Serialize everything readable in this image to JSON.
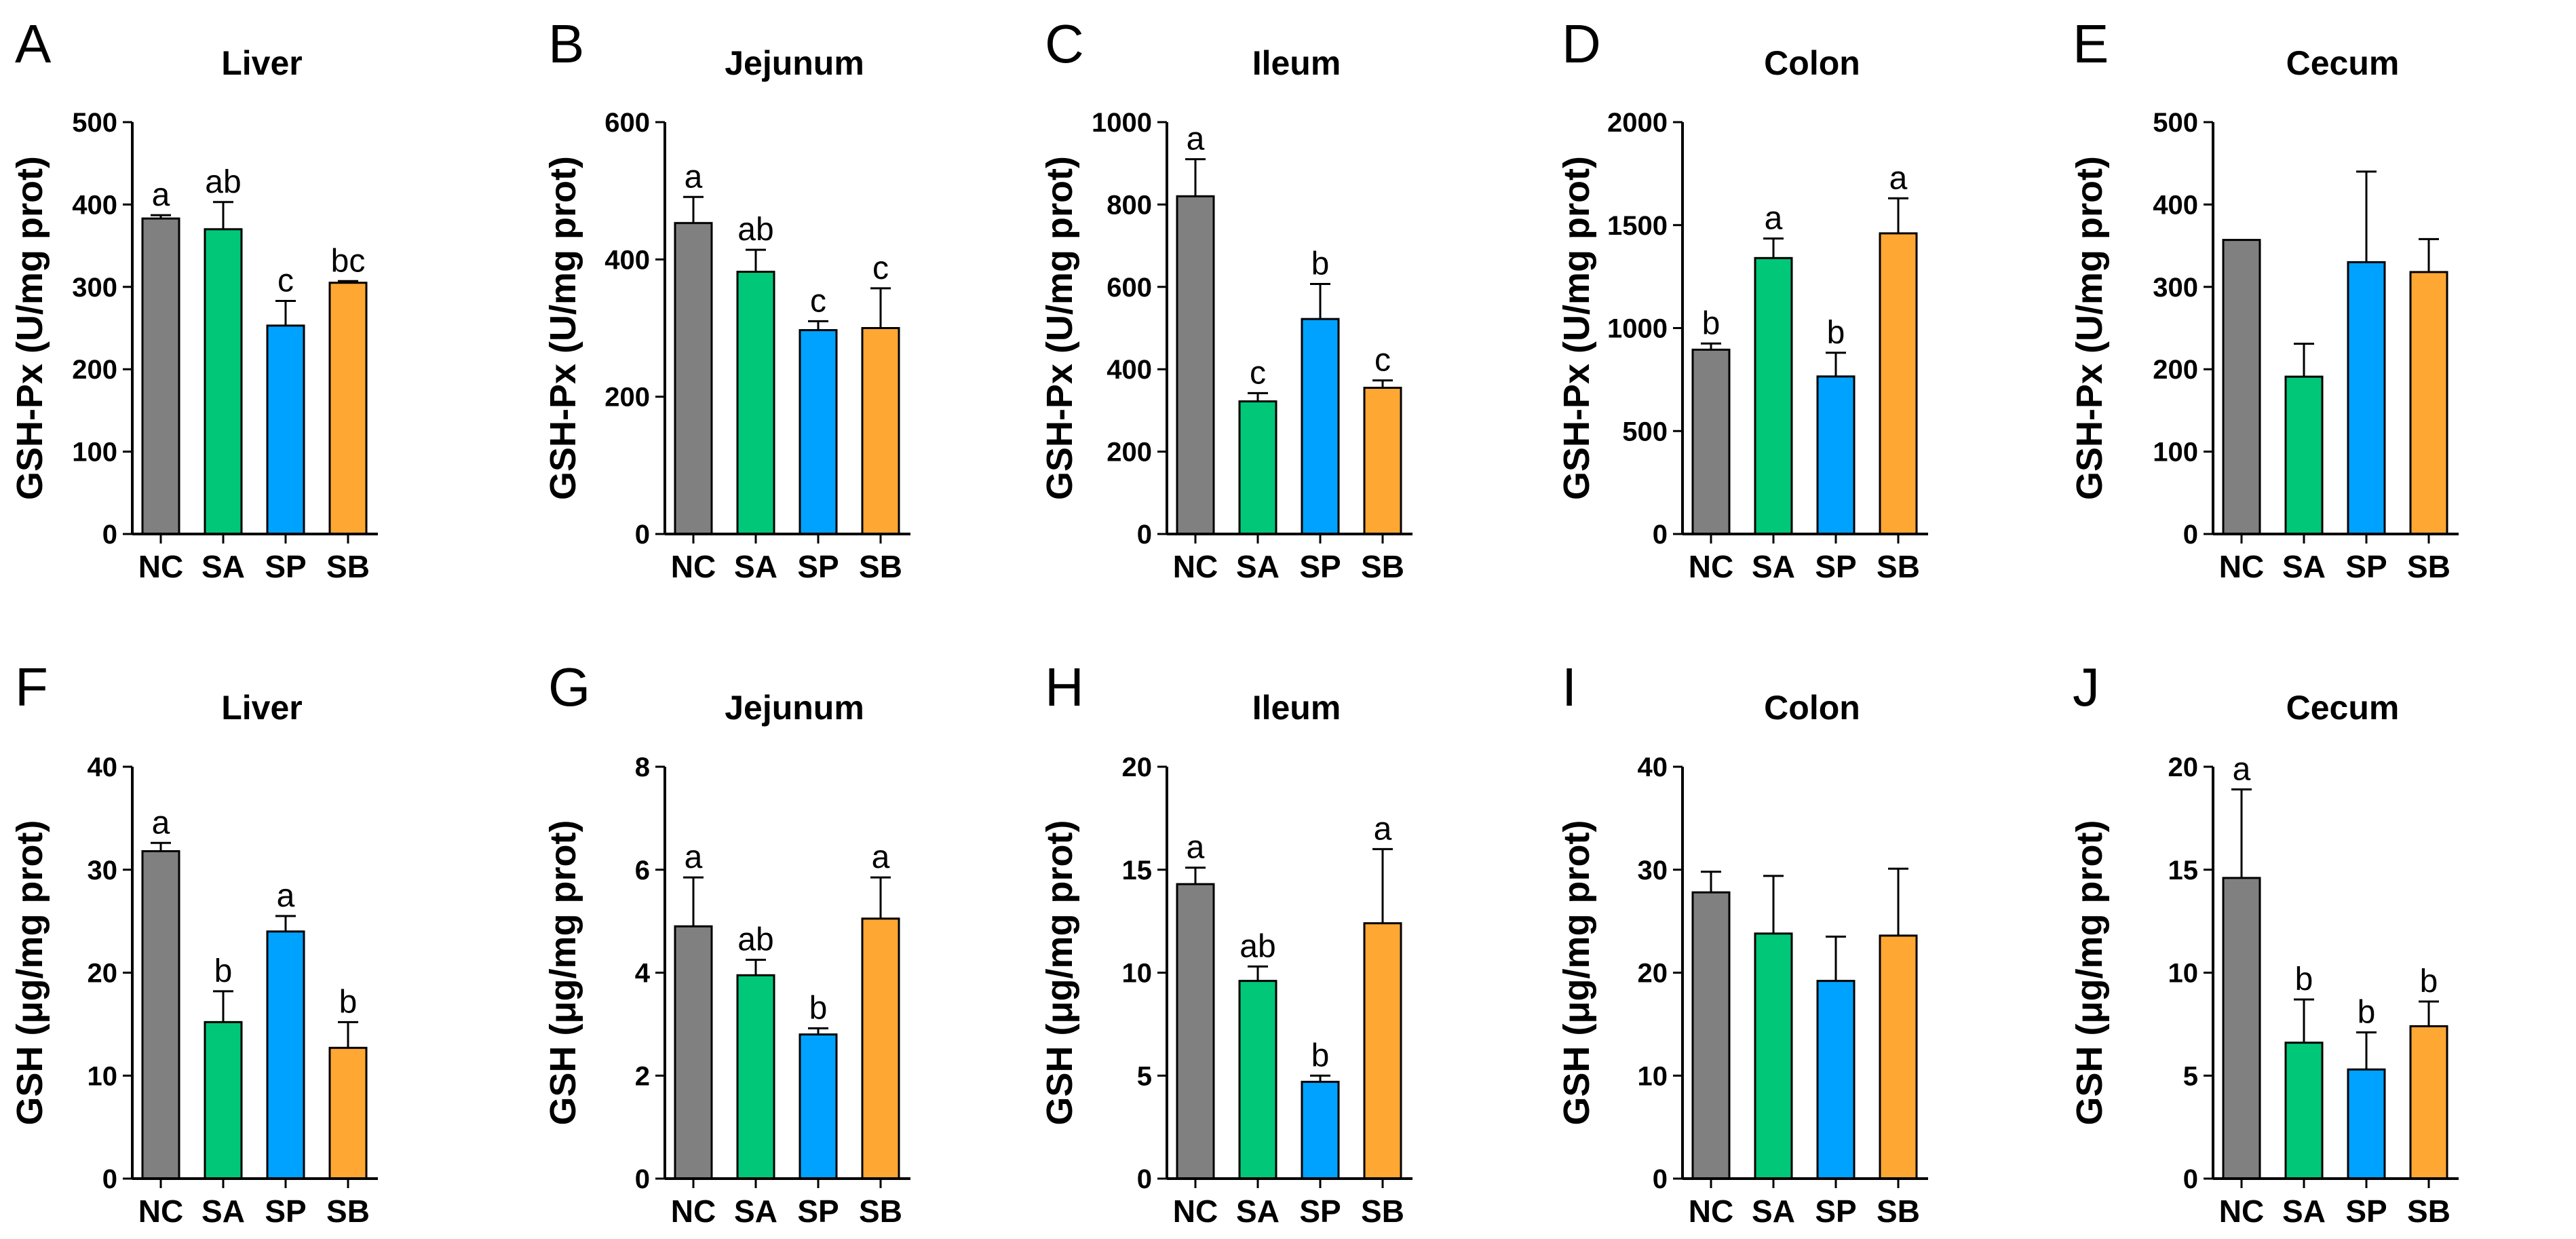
{
  "colors": {
    "NC": "#808080",
    "SA": "#00c878",
    "SP": "#00a2ff",
    "SB": "#ffa733"
  },
  "chart_data": [
    {
      "panel": "A",
      "type": "bar",
      "title": "Liver",
      "ylabel": "GSH-Px (U/mg prot)",
      "categories": [
        "NC",
        "SA",
        "SP",
        "SB"
      ],
      "ylim": [
        0,
        500
      ],
      "yticks": [
        0,
        100,
        200,
        300,
        400,
        500
      ],
      "values": [
        383,
        370,
        253,
        305
      ],
      "errors": [
        4,
        33,
        30,
        2
      ],
      "letters": [
        "a",
        "ab",
        "c",
        "bc"
      ]
    },
    {
      "panel": "B",
      "type": "bar",
      "title": "Jejunum",
      "ylabel": "GSH-Px (U/mg prot)",
      "categories": [
        "NC",
        "SA",
        "SP",
        "SB"
      ],
      "ylim": [
        0,
        600
      ],
      "yticks": [
        0,
        200,
        400,
        600
      ],
      "values": [
        453,
        382,
        297,
        300
      ],
      "errors": [
        38,
        32,
        13,
        58
      ],
      "letters": [
        "a",
        "ab",
        "c",
        "c"
      ]
    },
    {
      "panel": "C",
      "type": "bar",
      "title": "Ileum",
      "ylabel": "GSH-Px (U/mg prot)",
      "categories": [
        "NC",
        "SA",
        "SP",
        "SB"
      ],
      "ylim": [
        0,
        1000
      ],
      "yticks": [
        0,
        200,
        400,
        600,
        800,
        1000
      ],
      "values": [
        820,
        322,
        522,
        355
      ],
      "errors": [
        90,
        20,
        85,
        18
      ],
      "letters": [
        "a",
        "c",
        "b",
        "c"
      ]
    },
    {
      "panel": "D",
      "type": "bar",
      "title": "Colon",
      "ylabel": "GSH-Px (U/mg prot)",
      "categories": [
        "NC",
        "SA",
        "SP",
        "SB"
      ],
      "ylim": [
        0,
        2000
      ],
      "yticks": [
        0,
        500,
        1000,
        1500,
        2000
      ],
      "values": [
        895,
        1340,
        765,
        1460
      ],
      "errors": [
        30,
        95,
        115,
        170
      ],
      "letters": [
        "b",
        "a",
        "b",
        "a"
      ]
    },
    {
      "panel": "E",
      "type": "bar",
      "title": "Cecum",
      "ylabel": "GSH-Px (U/mg prot)",
      "categories": [
        "NC",
        "SA",
        "SP",
        "SB"
      ],
      "ylim": [
        0,
        500
      ],
      "yticks": [
        0,
        100,
        200,
        300,
        400,
        500
      ],
      "values": [
        357,
        191,
        330,
        318
      ],
      "errors": [
        0,
        40,
        110,
        40
      ],
      "letters": [
        "",
        "",
        "",
        ""
      ]
    },
    {
      "panel": "F",
      "type": "bar",
      "title": "Liver",
      "ylabel": "GSH (μg/mg prot)",
      "categories": [
        "NC",
        "SA",
        "SP",
        "SB"
      ],
      "ylim": [
        0,
        40
      ],
      "yticks": [
        0,
        10,
        20,
        30,
        40
      ],
      "values": [
        31.8,
        15.2,
        24.0,
        12.7
      ],
      "errors": [
        0.8,
        3.0,
        1.5,
        2.5
      ],
      "letters": [
        "a",
        "b",
        "a",
        "b"
      ]
    },
    {
      "panel": "G",
      "type": "bar",
      "title": "Jejunum",
      "ylabel": "GSH (μg/mg prot)",
      "categories": [
        "NC",
        "SA",
        "SP",
        "SB"
      ],
      "ylim": [
        0,
        8
      ],
      "yticks": [
        0,
        2,
        4,
        6,
        8
      ],
      "values": [
        4.9,
        3.95,
        2.8,
        5.05
      ],
      "errors": [
        0.95,
        0.3,
        0.12,
        0.8
      ],
      "letters": [
        "a",
        "ab",
        "b",
        "a"
      ]
    },
    {
      "panel": "H",
      "type": "bar",
      "title": "Ileum",
      "ylabel": "GSH (μg/mg prot)",
      "categories": [
        "NC",
        "SA",
        "SP",
        "SB"
      ],
      "ylim": [
        0,
        20
      ],
      "yticks": [
        0,
        5,
        10,
        15,
        20
      ],
      "values": [
        14.3,
        9.6,
        4.7,
        12.4
      ],
      "errors": [
        0.8,
        0.7,
        0.3,
        3.6
      ],
      "letters": [
        "a",
        "ab",
        "b",
        "a"
      ]
    },
    {
      "panel": "I",
      "type": "bar",
      "title": "Colon",
      "ylabel": "GSH (μg/mg prot)",
      "categories": [
        "NC",
        "SA",
        "SP",
        "SB"
      ],
      "ylim": [
        0,
        40
      ],
      "yticks": [
        0,
        10,
        20,
        30,
        40
      ],
      "values": [
        27.8,
        23.8,
        19.2,
        23.6
      ],
      "errors": [
        2.0,
        5.6,
        4.3,
        6.5
      ],
      "letters": [
        "",
        "",
        "",
        ""
      ]
    },
    {
      "panel": "J",
      "type": "bar",
      "title": "Cecum",
      "ylabel": "GSH (μg/mg prot)",
      "categories": [
        "NC",
        "SA",
        "SP",
        "SB"
      ],
      "ylim": [
        0,
        20
      ],
      "yticks": [
        0,
        5,
        10,
        15,
        20
      ],
      "values": [
        14.6,
        6.6,
        5.3,
        7.4
      ],
      "errors": [
        4.3,
        2.1,
        1.8,
        1.2
      ],
      "letters": [
        "a",
        "b",
        "b",
        "b"
      ]
    }
  ]
}
